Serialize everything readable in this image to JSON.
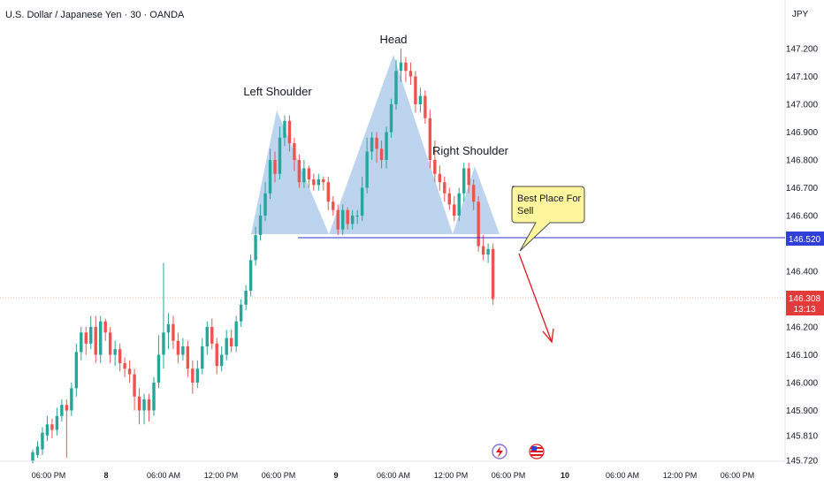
{
  "header": {
    "symbol_title": "U.S. Dollar / Japanese Yen · 30 · OANDA"
  },
  "currency": "JPY",
  "annotations": {
    "left_shoulder": "Left Shoulder",
    "head": "Head",
    "right_shoulder": "Right Shoulder",
    "callout_line1": "Best Place For",
    "callout_line2": "Sell"
  },
  "level_label": "146.520",
  "current_price": {
    "value": "146.308",
    "countdown": "13:13"
  },
  "colors": {
    "up": "#26a69a",
    "down": "#ef5350",
    "pattern_fill": "#8fb8e3",
    "level_line": "#2f2fd0",
    "arrow": "#e0171c",
    "callout_fill": "#fff59d",
    "price_tag": "#e33a3a",
    "level_tag": "#2f3fd8"
  },
  "icons": [
    "flash-event-icon",
    "us-flag-event-icon"
  ],
  "chart_data": {
    "type": "candlestick",
    "title": "U.S. Dollar / Japanese Yen · 30 · OANDA",
    "y_axis_ticks": [
      "147.200",
      "147.100",
      "147.000",
      "146.900",
      "146.800",
      "146.700",
      "146.600",
      "146.400",
      "146.200",
      "146.100",
      "146.000",
      "145.900",
      "145.810",
      "145.720"
    ],
    "x_axis_ticks": [
      "06:00 PM",
      "8",
      "06:00 AM",
      "12:00 PM",
      "06:00 PM",
      "9",
      "06:00 AM",
      "12:00 PM",
      "06:00 PM",
      "10",
      "06:00 AM",
      "12:00 PM",
      "06:00 PM"
    ],
    "ylim": [
      145.72,
      147.23
    ],
    "horizontal_level": 146.52,
    "last_price": 146.308,
    "pattern": "head and shoulders",
    "candles": [
      [
        145.72,
        145.75,
        145.71,
        145.76
      ],
      [
        145.74,
        145.77,
        145.73,
        145.79
      ],
      [
        145.76,
        145.82,
        145.74,
        145.84
      ],
      [
        145.81,
        145.85,
        145.79,
        145.88
      ],
      [
        145.85,
        145.83,
        145.8,
        145.87
      ],
      [
        145.83,
        145.88,
        145.81,
        145.91
      ],
      [
        145.88,
        145.92,
        145.86,
        145.94
      ],
      [
        145.92,
        145.9,
        145.73,
        145.94
      ],
      [
        145.9,
        145.98,
        145.88,
        146.0
      ],
      [
        145.98,
        146.11,
        145.95,
        146.14
      ],
      [
        146.11,
        146.18,
        146.08,
        146.2
      ],
      [
        146.18,
        146.14,
        146.1,
        146.2
      ],
      [
        146.14,
        146.2,
        146.12,
        146.24
      ],
      [
        146.2,
        146.1,
        146.07,
        146.24
      ],
      [
        146.1,
        146.22,
        146.07,
        146.24
      ],
      [
        146.22,
        146.18,
        146.15,
        146.23
      ],
      [
        146.18,
        146.1,
        146.07,
        146.2
      ],
      [
        146.1,
        146.12,
        146.06,
        146.15
      ],
      [
        146.12,
        146.07,
        146.04,
        146.14
      ],
      [
        146.07,
        146.05,
        146.02,
        146.09
      ],
      [
        146.05,
        146.03,
        146.0,
        146.08
      ],
      [
        146.03,
        145.95,
        145.9,
        146.05
      ],
      [
        145.95,
        145.9,
        145.85,
        145.98
      ],
      [
        145.9,
        145.94,
        145.85,
        145.96
      ],
      [
        145.94,
        145.9,
        145.86,
        145.96
      ],
      [
        145.9,
        146.0,
        145.88,
        146.02
      ],
      [
        146.0,
        146.1,
        145.98,
        146.17
      ],
      [
        146.1,
        146.18,
        146.05,
        146.43
      ],
      [
        146.18,
        146.21,
        146.12,
        146.25
      ],
      [
        146.21,
        146.15,
        146.12,
        146.24
      ],
      [
        146.15,
        146.1,
        146.07,
        146.18
      ],
      [
        146.1,
        146.13,
        146.08,
        146.16
      ],
      [
        146.13,
        146.05,
        146.02,
        146.15
      ],
      [
        146.05,
        146.0,
        145.96,
        146.08
      ],
      [
        146.0,
        146.05,
        145.98,
        146.08
      ],
      [
        146.05,
        146.13,
        146.03,
        146.16
      ],
      [
        146.13,
        146.2,
        146.1,
        146.22
      ],
      [
        146.2,
        146.14,
        146.12,
        146.23
      ],
      [
        146.14,
        146.06,
        146.03,
        146.16
      ],
      [
        146.06,
        146.1,
        146.04,
        146.13
      ],
      [
        146.1,
        146.16,
        146.08,
        146.19
      ],
      [
        146.16,
        146.13,
        146.11,
        146.19
      ],
      [
        146.13,
        146.22,
        146.11,
        146.24
      ],
      [
        146.22,
        146.28,
        146.2,
        146.3
      ],
      [
        146.28,
        146.33,
        146.26,
        146.35
      ],
      [
        146.33,
        146.44,
        146.31,
        146.46
      ],
      [
        146.44,
        146.53,
        146.42,
        146.56
      ],
      [
        146.53,
        146.6,
        146.51,
        146.64
      ],
      [
        146.6,
        146.68,
        146.58,
        146.72
      ],
      [
        146.68,
        146.8,
        146.66,
        146.84
      ],
      [
        146.8,
        146.75,
        146.72,
        146.83
      ],
      [
        146.75,
        146.88,
        146.73,
        146.92
      ],
      [
        146.88,
        146.94,
        146.85,
        146.96
      ],
      [
        146.94,
        146.86,
        146.83,
        146.96
      ],
      [
        146.86,
        146.8,
        146.76,
        146.88
      ],
      [
        146.8,
        146.72,
        146.7,
        146.82
      ],
      [
        146.72,
        146.77,
        146.7,
        146.8
      ],
      [
        146.77,
        146.73,
        146.7,
        146.78
      ],
      [
        146.73,
        146.71,
        146.69,
        146.75
      ],
      [
        146.71,
        146.73,
        146.69,
        146.75
      ],
      [
        146.73,
        146.72,
        146.69,
        146.74
      ],
      [
        146.72,
        146.65,
        146.62,
        146.74
      ],
      [
        146.65,
        146.62,
        146.6,
        146.67
      ],
      [
        146.62,
        146.55,
        146.53,
        146.64
      ],
      [
        146.55,
        146.62,
        146.53,
        146.64
      ],
      [
        146.62,
        146.57,
        146.55,
        146.63
      ],
      [
        146.57,
        146.6,
        146.55,
        146.62
      ],
      [
        146.6,
        146.6,
        146.57,
        146.62
      ],
      [
        146.6,
        146.7,
        146.58,
        146.74
      ],
      [
        146.7,
        146.83,
        146.68,
        146.88
      ],
      [
        146.83,
        146.88,
        146.8,
        146.9
      ],
      [
        146.88,
        146.84,
        146.79,
        146.9
      ],
      [
        146.84,
        146.8,
        146.77,
        146.87
      ],
      [
        146.8,
        146.9,
        146.77,
        146.92
      ],
      [
        146.9,
        147.0,
        146.88,
        147.02
      ],
      [
        147.0,
        147.12,
        146.98,
        147.16
      ],
      [
        147.12,
        147.15,
        147.08,
        147.2
      ],
      [
        147.15,
        147.12,
        147.08,
        147.17
      ],
      [
        147.12,
        147.1,
        147.07,
        147.15
      ],
      [
        147.1,
        147.0,
        146.97,
        147.12
      ],
      [
        147.0,
        147.03,
        146.97,
        147.06
      ],
      [
        147.03,
        146.95,
        146.93,
        147.05
      ],
      [
        146.95,
        146.8,
        146.77,
        146.98
      ],
      [
        146.8,
        146.75,
        146.72,
        146.87
      ],
      [
        146.75,
        146.72,
        146.69,
        146.78
      ],
      [
        146.72,
        146.68,
        146.65,
        146.74
      ],
      [
        146.68,
        146.64,
        146.62,
        146.7
      ],
      [
        146.64,
        146.6,
        146.58,
        146.67
      ],
      [
        146.6,
        146.68,
        146.58,
        146.7
      ],
      [
        146.68,
        146.77,
        146.65,
        146.79
      ],
      [
        146.77,
        146.71,
        146.68,
        146.79
      ],
      [
        146.71,
        146.65,
        146.62,
        146.73
      ],
      [
        146.65,
        146.49,
        146.47,
        146.67
      ],
      [
        146.49,
        146.46,
        146.44,
        146.53
      ],
      [
        146.46,
        146.48,
        146.43,
        146.5
      ],
      [
        146.48,
        146.3,
        146.28,
        146.5
      ]
    ]
  }
}
